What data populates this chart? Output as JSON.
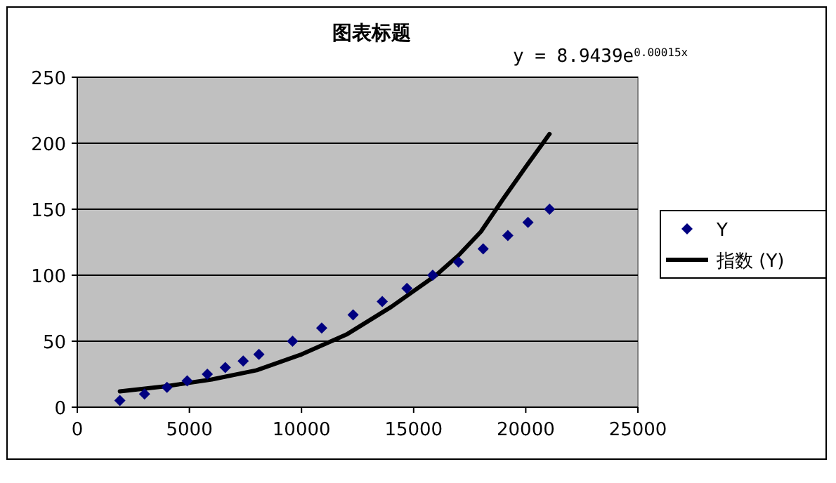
{
  "chart_data": {
    "type": "scatter",
    "title": "图表标题",
    "annotations": [
      "y = 8.9439e$^{0.00015x}$"
    ],
    "xlim": [
      0,
      25000
    ],
    "xticks": [
      0,
      5000,
      10000,
      15000,
      20000,
      25000
    ],
    "ylim": [
      0,
      250
    ],
    "yticks": [
      0,
      50,
      100,
      150,
      200,
      250
    ],
    "grid": "y",
    "legend": "right",
    "series": [
      {
        "name": "Y",
        "marker": "diamond",
        "color": "#000080",
        "x": [
          1900,
          3000,
          4000,
          4900,
          5800,
          6600,
          7400,
          8100,
          9600,
          10900,
          12300,
          13600,
          14700,
          15850,
          17000,
          18100,
          19200,
          20100,
          21060
        ],
        "values": [
          5,
          10,
          15,
          20,
          25,
          30,
          35,
          40,
          50,
          60,
          70,
          80,
          90,
          100,
          110,
          120,
          130,
          140,
          150
        ]
      },
      {
        "name": "指数 (Y)",
        "type": "line",
        "marker": "none",
        "color": "#000000",
        "x": [
          1900,
          4000,
          6000,
          8000,
          10000,
          12000,
          14000,
          16000,
          17000,
          18000,
          19000,
          20000,
          21060
        ],
        "values": [
          12,
          16,
          21,
          28,
          40,
          55,
          76,
          100,
          115,
          133,
          158,
          182,
          207
        ]
      }
    ]
  }
}
